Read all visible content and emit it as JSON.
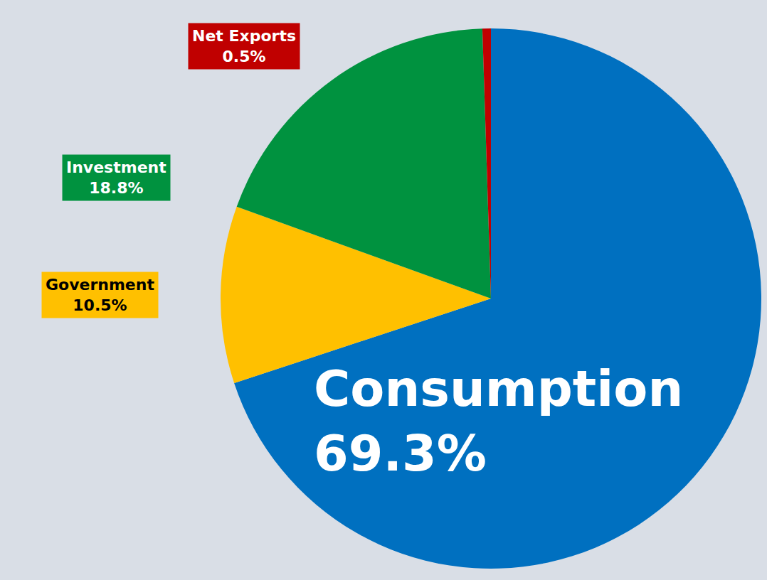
{
  "chart_data": {
    "type": "pie",
    "categories": [
      "Consumption",
      "Government",
      "Investment",
      "Net Exports"
    ],
    "values": [
      69.3,
      10.5,
      18.8,
      0.5
    ],
    "value_labels": [
      "69.3%",
      "10.5%",
      "18.8%",
      "0.5%"
    ],
    "colors": [
      "#0070c0",
      "#ffc000",
      "#00923f",
      "#c00000"
    ],
    "data_labels": true
  }
}
